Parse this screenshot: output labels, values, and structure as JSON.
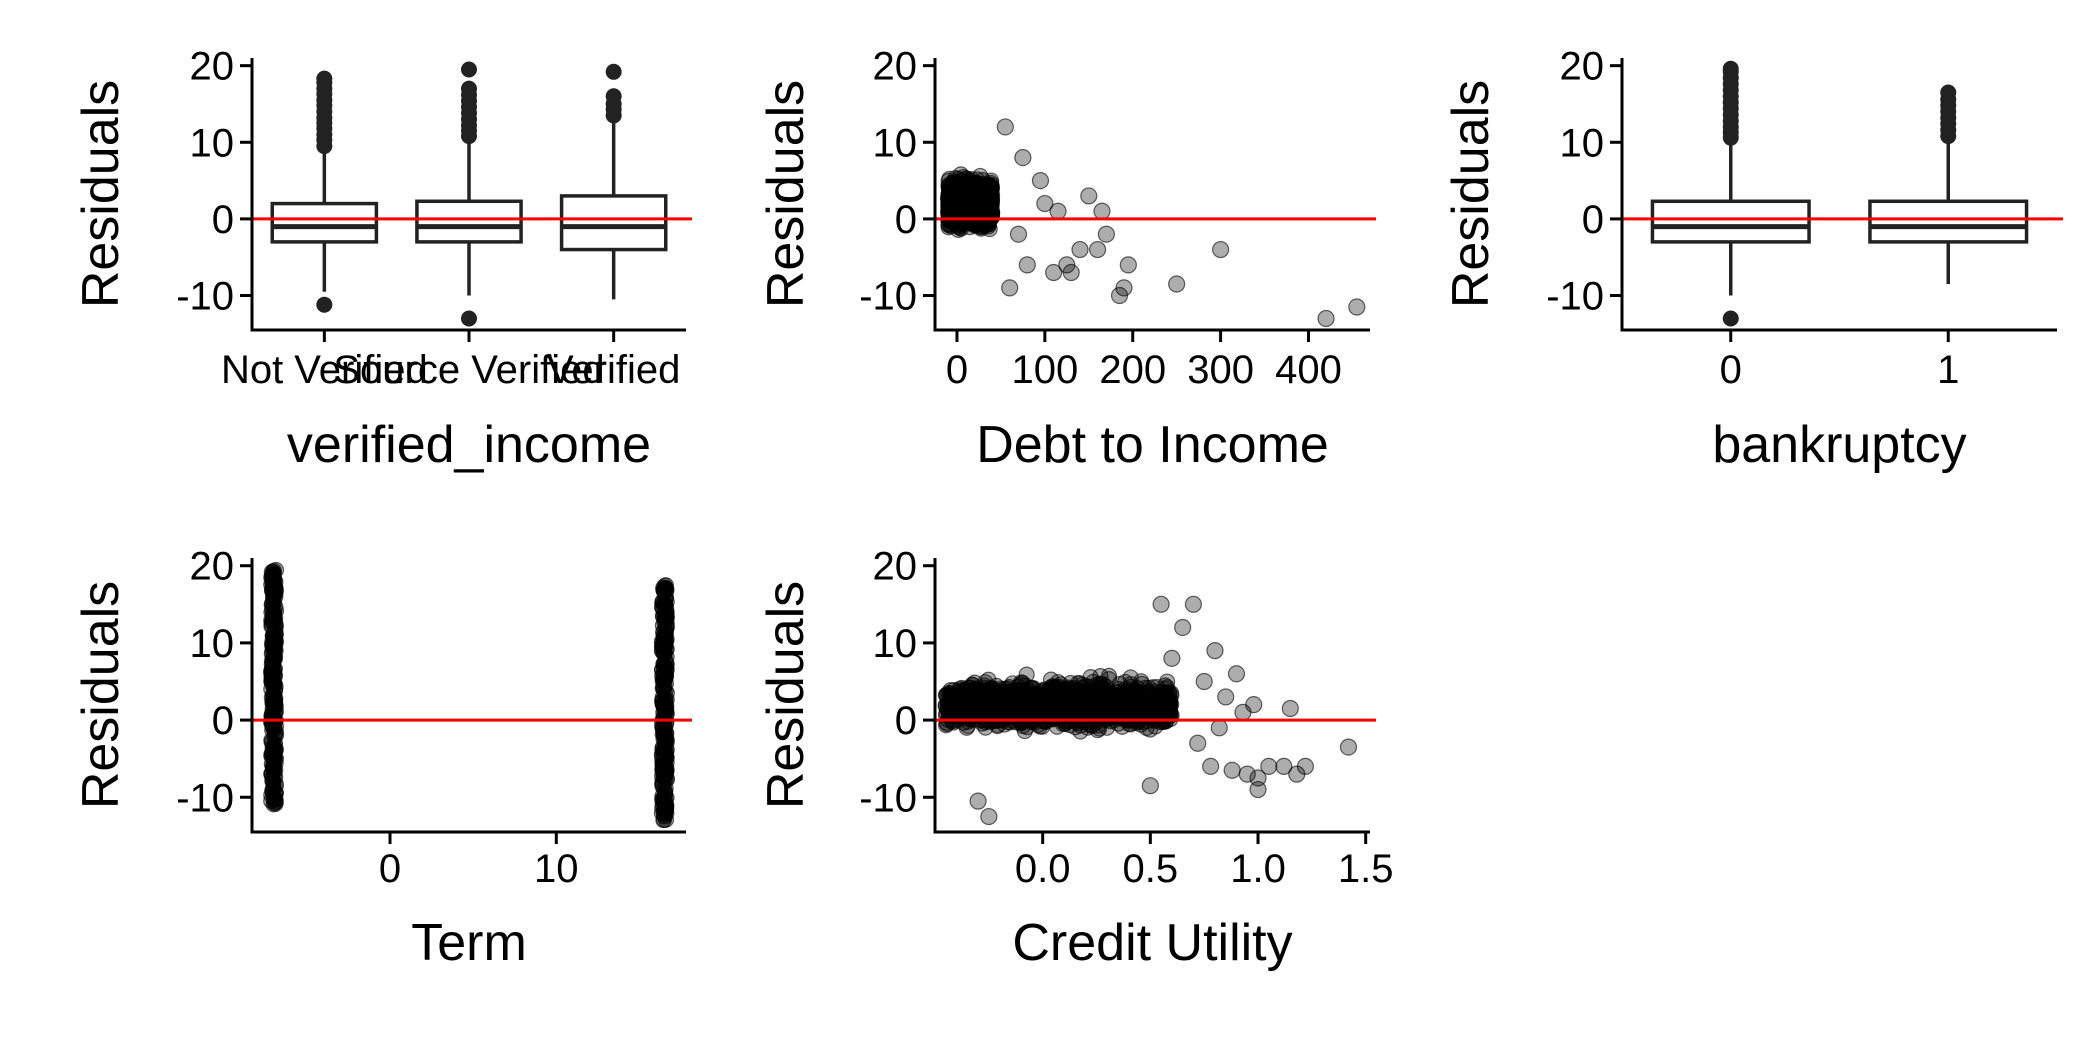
{
  "chart_data": [
    {
      "type": "box",
      "xlabel": "verified_income",
      "ylabel": "Residuals",
      "categories": [
        "Not Verified",
        "Source Verified",
        "Verified"
      ],
      "ylim": [
        -14.5,
        21
      ],
      "yticks": [
        -10,
        0,
        10,
        20
      ],
      "reference_line": {
        "y": 0,
        "color": "#ff0000"
      },
      "boxes": [
        {
          "q1": -3.0,
          "median": -1.0,
          "q3": 2.0,
          "lower": -9.5,
          "upper": 18.0,
          "outliers": [
            -11.2,
            9.5,
            10.3,
            11.0,
            11.8,
            12.5,
            13.2,
            14.0,
            14.8,
            15.5,
            16.3,
            17.0,
            17.8,
            18.3
          ]
        },
        {
          "q1": -3.0,
          "median": -1.0,
          "q3": 2.3,
          "lower": -10.0,
          "upper": 10.0,
          "outliers": [
            -13.0,
            10.8,
            11.5,
            12.2,
            13.0,
            13.8,
            14.6,
            15.4,
            16.2,
            17.0,
            19.5
          ]
        },
        {
          "q1": -4.0,
          "median": -1.0,
          "q3": 3.0,
          "lower": -10.5,
          "upper": 12.5,
          "outliers": [
            13.5,
            14.3,
            15.0,
            16.0,
            19.2
          ]
        }
      ]
    },
    {
      "type": "scatter",
      "xlabel": "Debt to Income",
      "ylabel": "Residuals",
      "xlim": [
        -25,
        470
      ],
      "xticks": [
        0,
        100,
        200,
        300,
        400
      ],
      "ylim": [
        -14.5,
        21
      ],
      "yticks": [
        -10,
        0,
        10,
        20
      ],
      "reference_line": {
        "y": 0,
        "color": "#ff0000"
      },
      "cluster": {
        "x": [
          -10,
          40
        ],
        "y": [
          -10,
          19.5
        ]
      },
      "points": [
        [
          55,
          12
        ],
        [
          75,
          8
        ],
        [
          70,
          -2
        ],
        [
          95,
          5
        ],
        [
          100,
          2
        ],
        [
          115,
          1
        ],
        [
          130,
          -7
        ],
        [
          140,
          -4
        ],
        [
          150,
          3
        ],
        [
          160,
          -4
        ],
        [
          165,
          1
        ],
        [
          170,
          -2
        ],
        [
          185,
          -10
        ],
        [
          190,
          -9
        ],
        [
          195,
          -6
        ],
        [
          250,
          -8.5
        ],
        [
          300,
          -4
        ],
        [
          110,
          -7
        ],
        [
          125,
          -6
        ],
        [
          80,
          -6
        ],
        [
          60,
          -9
        ],
        [
          420,
          -13
        ],
        [
          455,
          -11.5
        ]
      ]
    },
    {
      "type": "box",
      "xlabel": "bankruptcy",
      "ylabel": "Residuals",
      "categories": [
        "0",
        "1"
      ],
      "ylim": [
        -14.5,
        21
      ],
      "yticks": [
        -10,
        0,
        10,
        20
      ],
      "reference_line": {
        "y": 0,
        "color": "#ff0000"
      },
      "boxes": [
        {
          "q1": -3.0,
          "median": -1.0,
          "q3": 2.3,
          "lower": -10.0,
          "upper": 10.0,
          "outliers": [
            -13.0,
            10.6,
            11.3,
            12.0,
            12.8,
            13.6,
            14.4,
            15.2,
            16.0,
            16.8,
            17.6,
            18.4,
            19.2,
            19.6
          ]
        },
        {
          "q1": -3.0,
          "median": -1.0,
          "q3": 2.3,
          "lower": -8.5,
          "upper": 10.0,
          "outliers": [
            10.8,
            11.6,
            12.4,
            13.2,
            14.0,
            14.8,
            15.6,
            16.5
          ]
        }
      ]
    },
    {
      "type": "scatter",
      "xlabel": "Term",
      "ylabel": "Residuals",
      "xlim": [
        -8.3,
        17.8
      ],
      "xticks": [
        0,
        10
      ],
      "ylim": [
        -14.5,
        21
      ],
      "yticks": [
        -10,
        0,
        10,
        20
      ],
      "reference_line": {
        "y": 0,
        "color": "#ff0000"
      },
      "columns": [
        {
          "x": -7.0,
          "y": [
            -11,
            19.5
          ]
        },
        {
          "x": 16.5,
          "y": [
            -13,
            17.5
          ]
        }
      ]
    },
    {
      "type": "scatter",
      "xlabel": "Credit Utility",
      "ylabel": "Residuals",
      "xlim": [
        -0.5,
        1.52
      ],
      "xticks": [
        0.0,
        0.5,
        1.0,
        1.5
      ],
      "xtick_labels": [
        "0.0",
        "0.5",
        "1.0",
        "1.5"
      ],
      "ylim": [
        -14.5,
        21
      ],
      "yticks": [
        -10,
        0,
        10,
        20
      ],
      "reference_line": {
        "y": 0,
        "color": "#ff0000"
      },
      "cluster": {
        "x": [
          -0.45,
          0.6
        ],
        "y": [
          -9,
          18
        ]
      },
      "points": [
        [
          0.6,
          8
        ],
        [
          0.65,
          12
        ],
        [
          0.7,
          15
        ],
        [
          0.72,
          -3
        ],
        [
          0.75,
          5
        ],
        [
          0.78,
          -6
        ],
        [
          0.8,
          9
        ],
        [
          0.82,
          -1
        ],
        [
          0.85,
          3
        ],
        [
          0.88,
          -6.5
        ],
        [
          0.9,
          6
        ],
        [
          0.93,
          1
        ],
        [
          0.95,
          -7
        ],
        [
          0.98,
          2
        ],
        [
          1.0,
          -7.5
        ],
        [
          1.0,
          -9
        ],
        [
          1.05,
          -6
        ],
        [
          1.12,
          -6
        ],
        [
          1.15,
          1.5
        ],
        [
          1.18,
          -7
        ],
        [
          1.22,
          -6
        ],
        [
          1.42,
          -3.5
        ],
        [
          0.55,
          15
        ],
        [
          0.5,
          -8.5
        ],
        [
          -0.25,
          -12.5
        ],
        [
          -0.3,
          -10.5
        ]
      ]
    }
  ]
}
